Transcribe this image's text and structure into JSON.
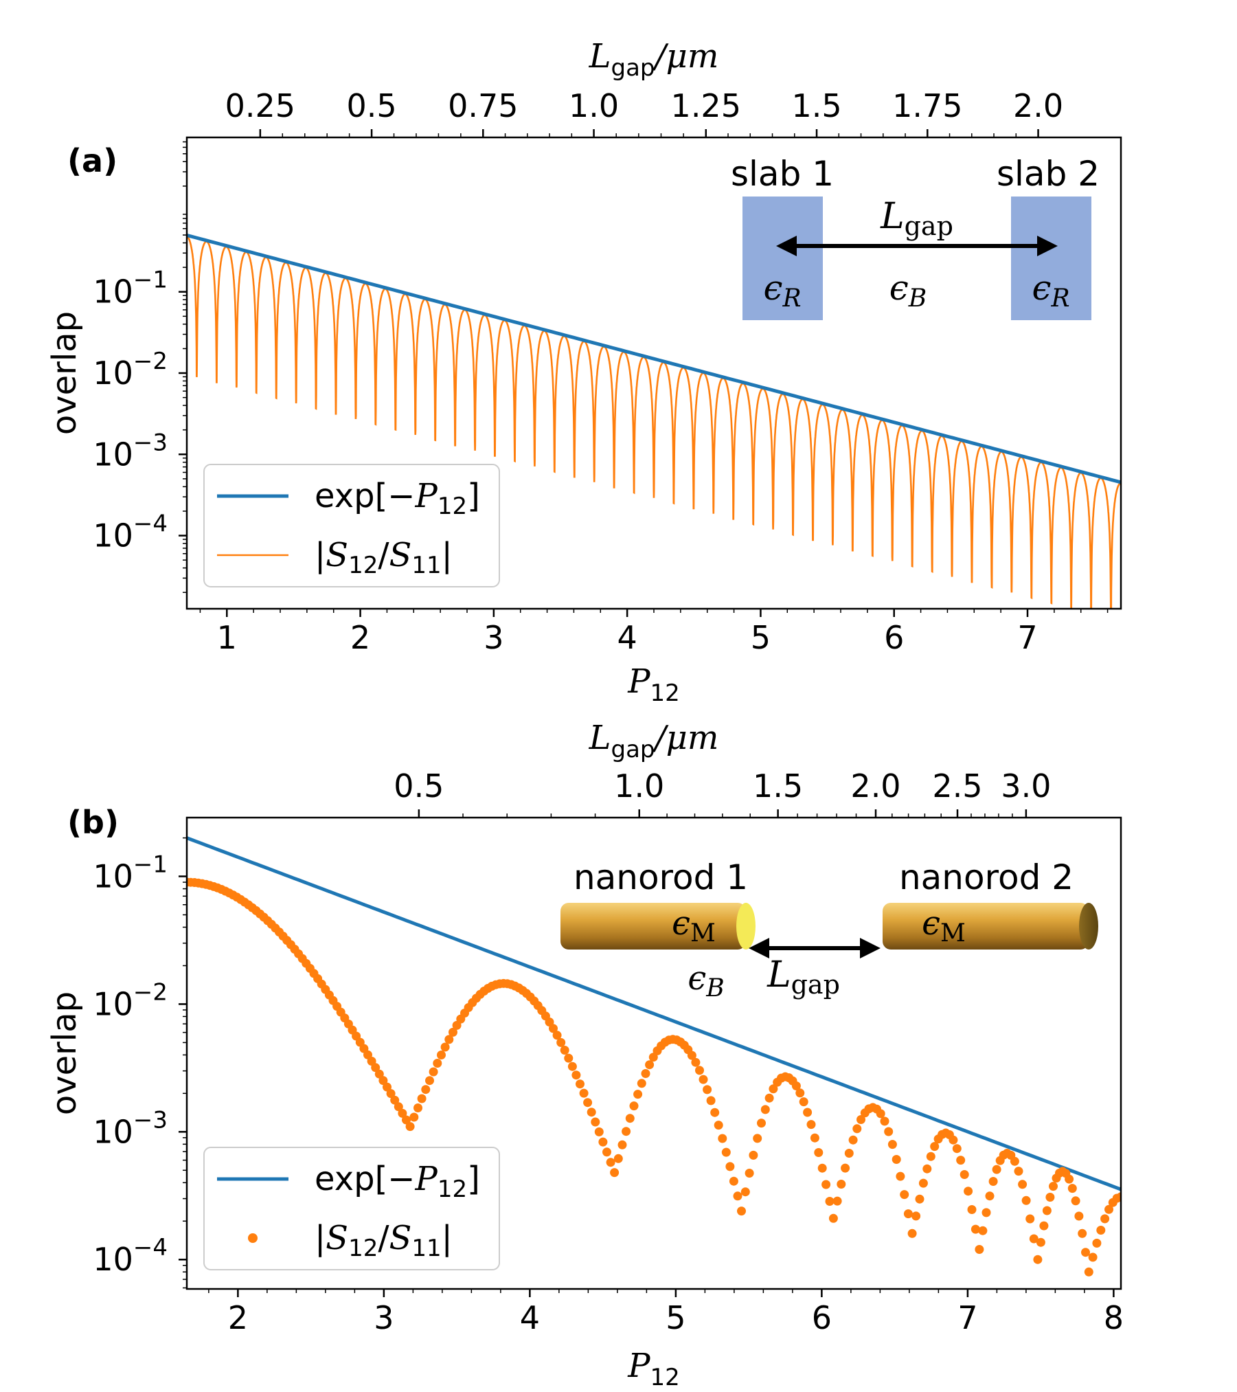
{
  "chart_data": [
    {
      "panel": "(a)",
      "type": "line",
      "xlabel": "P",
      "xlabel_sub": "12",
      "ylabel": "overlap",
      "yscale": "log",
      "xlim": [
        0.7,
        7.7
      ],
      "ylim_log10": [
        -4.9,
        0.9
      ],
      "x_ticks": [
        "1",
        "2",
        "3",
        "4",
        "5",
        "6",
        "7"
      ],
      "y_ticks": [
        {
          "base": "10",
          "exp": "−1"
        },
        {
          "base": "10",
          "exp": "−2"
        },
        {
          "base": "10",
          "exp": "−3"
        },
        {
          "base": "10",
          "exp": "−4"
        }
      ],
      "top_axis": {
        "label_base": "L",
        "label_sub": "gap",
        "label_unit": "/μm",
        "ticks": [
          "0.25",
          "0.5",
          "0.75",
          "1.0",
          "1.25",
          "1.5",
          "1.75",
          "2.0"
        ],
        "tick_positions_P": [
          1.25,
          2.085,
          2.92,
          3.75,
          4.59,
          5.42,
          6.25,
          7.08
        ]
      },
      "series": [
        {
          "name": "exp[−P12]",
          "style": "line",
          "color": "#1f77b4",
          "function": "exp(-P12)"
        },
        {
          "name": "|S12/S11|",
          "style": "thin-line",
          "color": "#ff7f0e",
          "function": "exp(-P12)*|cos(k*L)|",
          "lobes": 47
        }
      ],
      "legend": [
        {
          "pre": "exp[−",
          "var": "P",
          "sub": "12",
          "post": "]"
        },
        {
          "pre": "|",
          "var": "S",
          "sub": "12",
          "mid": "/",
          "var2": "S",
          "sub2": "11",
          "post": "|"
        }
      ],
      "legend_position": "lower-left",
      "inset": {
        "left_label": "slab 1",
        "right_label": "slab 2",
        "gap_label": "L",
        "gap_sub": "gap",
        "eps_left": "ϵ",
        "eps_left_sub": "R",
        "eps_mid": "ϵ",
        "eps_mid_sub": "B",
        "eps_right": "ϵ",
        "eps_right_sub": "R",
        "slab_color": "#92acdc"
      }
    },
    {
      "panel": "(b)",
      "type": "scatter",
      "xlabel": "P",
      "xlabel_sub": "12",
      "ylabel": "overlap",
      "yscale": "log",
      "xlim": [
        1.65,
        8.05
      ],
      "ylim_log10": [
        -4.23,
        -0.54
      ],
      "x_ticks": [
        "2",
        "3",
        "4",
        "5",
        "6",
        "7",
        "8"
      ],
      "y_ticks": [
        {
          "base": "10",
          "exp": "−1"
        },
        {
          "base": "10",
          "exp": "−2"
        },
        {
          "base": "10",
          "exp": "−3"
        },
        {
          "base": "10",
          "exp": "−4"
        }
      ],
      "top_axis": {
        "label_base": "L",
        "label_sub": "gap",
        "label_unit": "/μm",
        "ticks": [
          "0.5",
          "1.0",
          "1.5",
          "2.0",
          "2.5",
          "3.0"
        ],
        "tick_positions_P": [
          3.24,
          4.75,
          5.7,
          6.37,
          6.93,
          7.4
        ]
      },
      "series": [
        {
          "name": "exp[−P12]",
          "style": "line",
          "color": "#1f77b4",
          "function": "exp(-P12)"
        },
        {
          "name": "|S12/S11|",
          "style": "markers",
          "color": "#ff7f0e",
          "peaks": [
            [
              1.65,
              0.09
            ],
            [
              3.82,
              0.0145
            ],
            [
              4.98,
              0.0053
            ],
            [
              5.75,
              0.0027
            ],
            [
              6.35,
              0.00155
            ],
            [
              6.85,
              0.00098
            ],
            [
              7.27,
              0.00068
            ],
            [
              7.65,
              0.00049
            ],
            [
              8.05,
              0.00031
            ]
          ],
          "minima": [
            [
              3.18,
              0.0011
            ],
            [
              4.58,
              0.00048
            ],
            [
              5.45,
              0.00024
            ],
            [
              6.08,
              0.00021
            ],
            [
              6.62,
              0.00016
            ],
            [
              7.08,
              0.00012
            ],
            [
              7.48,
              0.0001
            ],
            [
              7.83,
              8e-05
            ]
          ]
        }
      ],
      "legend": [
        {
          "pre": "exp[−",
          "var": "P",
          "sub": "12",
          "post": "]"
        },
        {
          "pre": "|",
          "var": "S",
          "sub": "12",
          "mid": "/",
          "var2": "S",
          "sub2": "11",
          "post": "|"
        }
      ],
      "legend_position": "lower-left",
      "inset": {
        "left_label": "nanorod 1",
        "right_label": "nanorod 2",
        "gap_label": "L",
        "gap_sub": "gap",
        "eps_rod_left": "ϵ",
        "eps_rod_left_sub": "M",
        "eps_rod_right": "ϵ",
        "eps_rod_right_sub": "M",
        "eps_bg": "ϵ",
        "eps_bg_sub": "B"
      }
    }
  ],
  "colors": {
    "blue": "#1f77b4",
    "orange": "#ff7f0e",
    "slab": "#92acdc",
    "gold": "#c99a2e"
  }
}
